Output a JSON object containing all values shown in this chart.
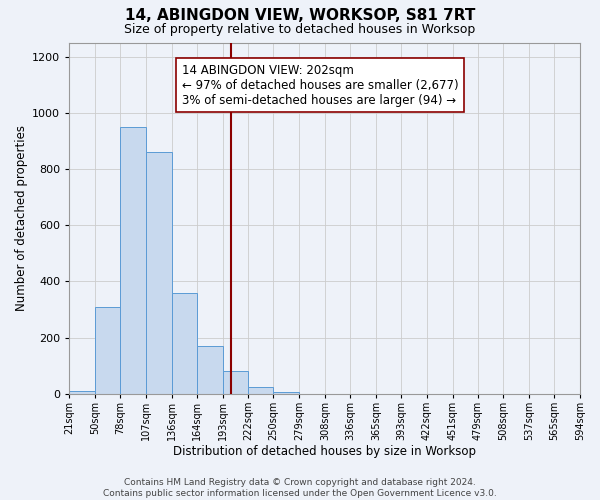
{
  "title": "14, ABINGDON VIEW, WORKSOP, S81 7RT",
  "subtitle": "Size of property relative to detached houses in Worksop",
  "xlabel": "Distribution of detached houses by size in Worksop",
  "ylabel": "Number of detached properties",
  "bin_labels": [
    "21sqm",
    "50sqm",
    "78sqm",
    "107sqm",
    "136sqm",
    "164sqm",
    "193sqm",
    "222sqm",
    "250sqm",
    "279sqm",
    "308sqm",
    "336sqm",
    "365sqm",
    "393sqm",
    "422sqm",
    "451sqm",
    "479sqm",
    "508sqm",
    "537sqm",
    "565sqm",
    "594sqm"
  ],
  "bar_values": [
    10,
    310,
    950,
    860,
    360,
    170,
    80,
    25,
    5,
    0,
    0,
    0,
    0,
    0,
    0,
    0,
    0,
    0,
    0,
    0
  ],
  "bar_color": "#c8d9ee",
  "bar_edge_color": "#5b9bd5",
  "vline_x": 202,
  "vline_color": "#8b0000",
  "annotation_line1": "14 ABINGDON VIEW: 202sqm",
  "annotation_line2": "← 97% of detached houses are smaller (2,677)",
  "annotation_line3": "3% of semi-detached houses are larger (94) →",
  "annotation_box_edge_color": "#8b0000",
  "annotation_fontsize": 8.5,
  "ylim": [
    0,
    1250
  ],
  "yticks": [
    0,
    200,
    400,
    600,
    800,
    1000,
    1200
  ],
  "grid_color": "#cccccc",
  "background_color": "#eef2f9",
  "footer_text": "Contains HM Land Registry data © Crown copyright and database right 2024.\nContains public sector information licensed under the Open Government Licence v3.0.",
  "title_fontsize": 11,
  "subtitle_fontsize": 9,
  "xlabel_fontsize": 8.5,
  "ylabel_fontsize": 8.5,
  "footer_fontsize": 6.5,
  "bin_starts": [
    21,
    50,
    78,
    107,
    136,
    164,
    193,
    222,
    250,
    279,
    308,
    336,
    365,
    393,
    422,
    451,
    479,
    508,
    537,
    565
  ],
  "xmax": 594
}
